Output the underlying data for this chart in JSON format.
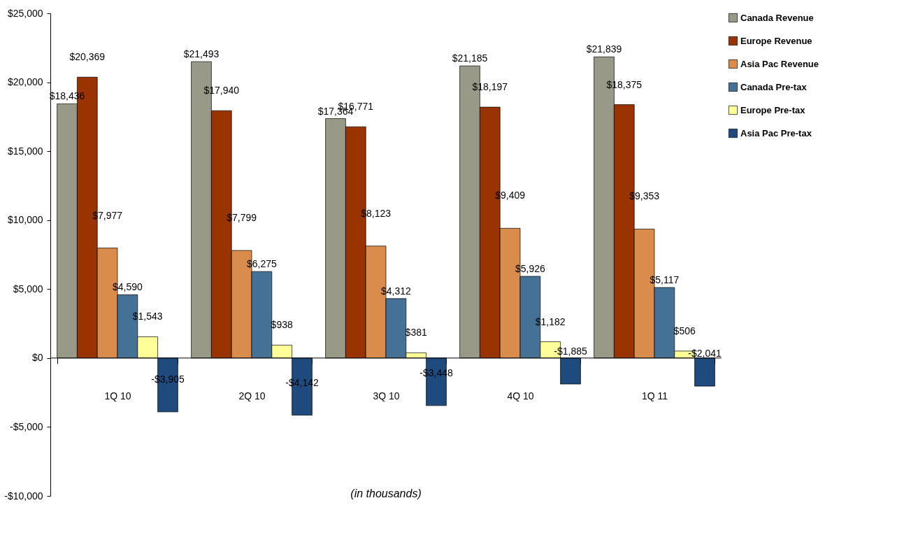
{
  "chart_data": {
    "type": "bar",
    "categories": [
      "1Q 10",
      "2Q 10",
      "3Q 10",
      "4Q 10",
      "1Q 11"
    ],
    "series": [
      {
        "name": "Canada Revenue",
        "color": "#999988",
        "values": [
          18436,
          21493,
          17364,
          21185,
          21839
        ],
        "value_labels": [
          "$18,436",
          "$21,493",
          "$17,364",
          "$21,185",
          "$21,839"
        ]
      },
      {
        "name": "Europe Revenue",
        "color": "#993300",
        "values": [
          20369,
          17940,
          16771,
          18197,
          18375
        ],
        "value_labels": [
          "$20,369",
          "$17,940",
          "$16,771",
          "$18,197",
          "$18,375"
        ]
      },
      {
        "name": "Asia Pac Revenue",
        "color": "#d98c4c",
        "values": [
          7977,
          7799,
          8123,
          9409,
          9353
        ],
        "value_labels": [
          "$7,977",
          "$7,799",
          "$8,123",
          "$9,409",
          "$9,353"
        ]
      },
      {
        "name": "Canada Pre-tax",
        "color": "#467197",
        "values": [
          4590,
          6275,
          4312,
          5926,
          5117
        ],
        "value_labels": [
          "$4,590",
          "$6,275",
          "$4,312",
          "$5,926",
          "$5,117"
        ]
      },
      {
        "name": "Europe Pre-tax",
        "color": "#ffff99",
        "values": [
          1543,
          938,
          381,
          1182,
          506
        ],
        "value_labels": [
          "$1,543",
          "$938",
          "$381",
          "$1,182",
          "$506"
        ]
      },
      {
        "name": "Asia Pac Pre-tax",
        "color": "#1f4a7e",
        "values": [
          -3905,
          -4142,
          -3448,
          -1885,
          -2041
        ],
        "value_labels": [
          "-$3,905",
          "-$4,142",
          "-$3,448",
          "-$1,885",
          "-$2,041"
        ]
      }
    ],
    "ylim": [
      -10000,
      25000
    ],
    "yticks": [
      {
        "value": -10000,
        "label": "-$10,000"
      },
      {
        "value": -5000,
        "label": "-$5,000"
      },
      {
        "value": 0,
        "label": "$0"
      },
      {
        "value": 5000,
        "label": "$5,000"
      },
      {
        "value": 10000,
        "label": "$10,000"
      },
      {
        "value": 15000,
        "label": "$15,000"
      },
      {
        "value": 20000,
        "label": "$20,000"
      },
      {
        "value": 25000,
        "label": "$25,000"
      }
    ],
    "grid": false,
    "legend": "right",
    "ref_lines": [
      {
        "axis": "y",
        "value": 0,
        "color": "#000000"
      }
    ],
    "annotations": [
      "(in thousands)"
    ]
  }
}
